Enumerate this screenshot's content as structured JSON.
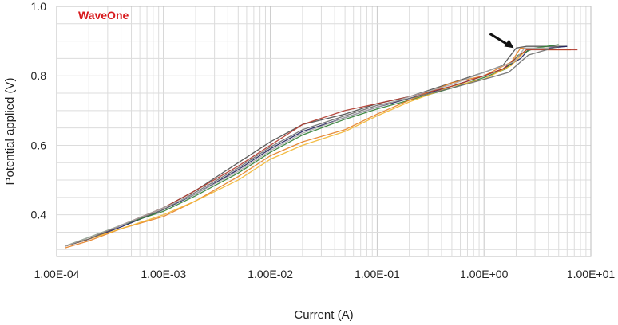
{
  "chart_data": {
    "type": "line",
    "title": "",
    "annotation": "WaveOne",
    "annotation_color": "#d7191c",
    "xlabel": "Current (A)",
    "ylabel": "Potential applied (V)",
    "xscale": "log",
    "xlim": [
      0.0001,
      10
    ],
    "ylim": [
      0.28,
      1.0
    ],
    "x_ticks": [
      0.0001,
      0.001,
      0.01,
      0.1,
      1,
      10
    ],
    "x_tick_labels": [
      "1.00E-04",
      "1.00E-03",
      "1.00E-02",
      "1.00E-01",
      "1.00E+00",
      "1.00E+01"
    ],
    "y_ticks": [
      0.4,
      0.6,
      0.8,
      1.0
    ],
    "y_tick_labels": [
      "0.4",
      "0.6",
      "0.8",
      "1.0"
    ],
    "grid": true,
    "arrow_target": {
      "x": 1.9,
      "y": 0.88
    },
    "series": [
      {
        "color": "#4d4d4d",
        "x": [
          0.00012,
          0.0002,
          0.0004,
          0.001,
          0.002,
          0.005,
          0.01,
          0.02,
          0.05,
          0.1,
          0.2,
          0.5,
          1.0,
          1.5,
          2.0,
          2.5,
          4.0,
          6.0
        ],
        "y": [
          0.31,
          0.33,
          0.37,
          0.42,
          0.47,
          0.55,
          0.61,
          0.66,
          0.69,
          0.72,
          0.74,
          0.78,
          0.81,
          0.83,
          0.88,
          0.885,
          0.885,
          0.885
        ]
      },
      {
        "color": "#1f1f5c",
        "x": [
          0.00012,
          0.0002,
          0.0004,
          0.001,
          0.002,
          0.005,
          0.01,
          0.02,
          0.05,
          0.1,
          0.2,
          0.5,
          1.0,
          1.5,
          2.2,
          2.6,
          4.0,
          6.0
        ],
        "y": [
          0.31,
          0.33,
          0.365,
          0.415,
          0.46,
          0.53,
          0.59,
          0.64,
          0.68,
          0.71,
          0.735,
          0.77,
          0.8,
          0.82,
          0.85,
          0.875,
          0.88,
          0.885
        ]
      },
      {
        "color": "#2e7d32",
        "x": [
          0.00012,
          0.0002,
          0.0004,
          0.001,
          0.002,
          0.005,
          0.01,
          0.02,
          0.05,
          0.1,
          0.2,
          0.5,
          1.0,
          1.6,
          2.1,
          3.0,
          5.0
        ],
        "y": [
          0.31,
          0.335,
          0.37,
          0.41,
          0.455,
          0.52,
          0.58,
          0.63,
          0.675,
          0.705,
          0.73,
          0.765,
          0.795,
          0.82,
          0.86,
          0.88,
          0.89
        ]
      },
      {
        "color": "#e67e22",
        "x": [
          0.00012,
          0.0002,
          0.0004,
          0.001,
          0.002,
          0.005,
          0.01,
          0.02,
          0.05,
          0.1,
          0.2,
          0.5,
          1.0,
          1.8,
          2.2,
          4.0,
          6.5
        ],
        "y": [
          0.305,
          0.325,
          0.36,
          0.395,
          0.44,
          0.51,
          0.57,
          0.61,
          0.645,
          0.69,
          0.73,
          0.78,
          0.8,
          0.84,
          0.88,
          0.875,
          0.875
        ]
      },
      {
        "color": "#f2b632",
        "x": [
          0.00012,
          0.0002,
          0.0004,
          0.001,
          0.002,
          0.005,
          0.01,
          0.02,
          0.05,
          0.1,
          0.2,
          0.5,
          1.0,
          1.8,
          2.5,
          4.0
        ],
        "y": [
          0.31,
          0.33,
          0.36,
          0.4,
          0.44,
          0.5,
          0.56,
          0.6,
          0.64,
          0.685,
          0.725,
          0.77,
          0.79,
          0.83,
          0.875,
          0.88
        ]
      },
      {
        "color": "#b03a2e",
        "x": [
          0.00012,
          0.0002,
          0.0004,
          0.001,
          0.002,
          0.005,
          0.01,
          0.02,
          0.05,
          0.1,
          0.2,
          0.5,
          1.0,
          1.5,
          2.5,
          4.0,
          7.5
        ],
        "y": [
          0.31,
          0.33,
          0.37,
          0.42,
          0.47,
          0.54,
          0.6,
          0.66,
          0.7,
          0.72,
          0.74,
          0.77,
          0.8,
          0.82,
          0.875,
          0.875,
          0.875
        ]
      },
      {
        "color": "#6b6b6b",
        "x": [
          0.00012,
          0.0002,
          0.0004,
          0.001,
          0.002,
          0.005,
          0.01,
          0.02,
          0.05,
          0.1,
          0.2,
          0.5,
          1.0,
          1.7,
          2.6,
          5.0
        ],
        "y": [
          0.31,
          0.33,
          0.37,
          0.415,
          0.465,
          0.535,
          0.595,
          0.645,
          0.685,
          0.715,
          0.735,
          0.765,
          0.79,
          0.81,
          0.86,
          0.885
        ]
      },
      {
        "color": "#a9a9a9",
        "x": [
          0.00012,
          0.0002,
          0.0004,
          0.001,
          0.002,
          0.005,
          0.01,
          0.02,
          0.05,
          0.1,
          0.2,
          0.5,
          1.0,
          1.9,
          2.4,
          4.0
        ],
        "y": [
          0.31,
          0.335,
          0.37,
          0.42,
          0.46,
          0.525,
          0.585,
          0.635,
          0.68,
          0.71,
          0.74,
          0.775,
          0.81,
          0.84,
          0.88,
          0.88
        ]
      }
    ]
  }
}
